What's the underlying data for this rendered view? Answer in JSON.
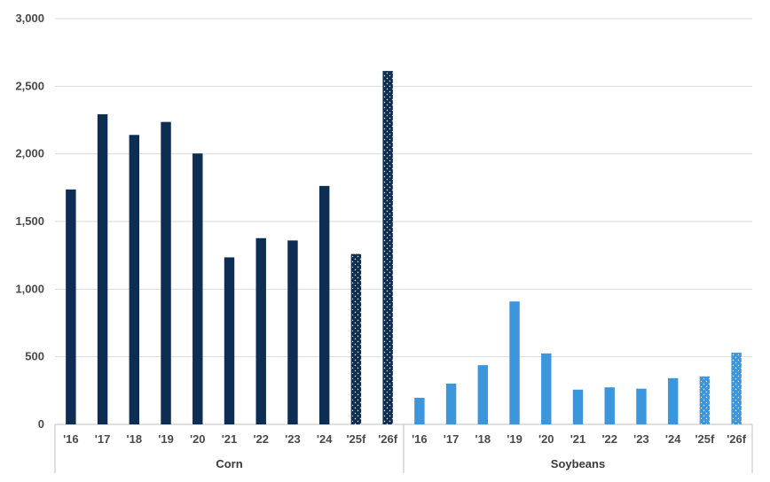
{
  "chart_data": {
    "type": "bar",
    "ylim": [
      0,
      3000
    ],
    "yticks": [
      "0",
      "500",
      "1,000",
      "1,500",
      "2,000",
      "2,500",
      "3,000"
    ],
    "ytick_values": [
      0,
      500,
      1000,
      1500,
      2000,
      2500,
      3000
    ],
    "grid": true,
    "groups": [
      {
        "name": "Corn",
        "color": "#0d2d52",
        "categories": [
          "'16",
          "'17",
          "'18",
          "'19",
          "'20",
          "'21",
          "'22",
          "'23",
          "'24",
          "'25f",
          "'26f"
        ],
        "values": [
          1737,
          2293,
          2140,
          2236,
          2003,
          1235,
          1377,
          1360,
          1763,
          1260,
          2613
        ],
        "forecast": [
          false,
          false,
          false,
          false,
          false,
          false,
          false,
          false,
          false,
          true,
          true
        ]
      },
      {
        "name": "Soybeans",
        "color": "#3c96dc",
        "categories": [
          "'16",
          "'17",
          "'18",
          "'19",
          "'20",
          "'21",
          "'22",
          "'23",
          "'24",
          "'25f",
          "'26f"
        ],
        "values": [
          197,
          302,
          438,
          909,
          525,
          257,
          274,
          264,
          342,
          355,
          530
        ],
        "forecast": [
          false,
          false,
          false,
          false,
          false,
          false,
          false,
          false,
          false,
          true,
          true
        ]
      }
    ]
  }
}
